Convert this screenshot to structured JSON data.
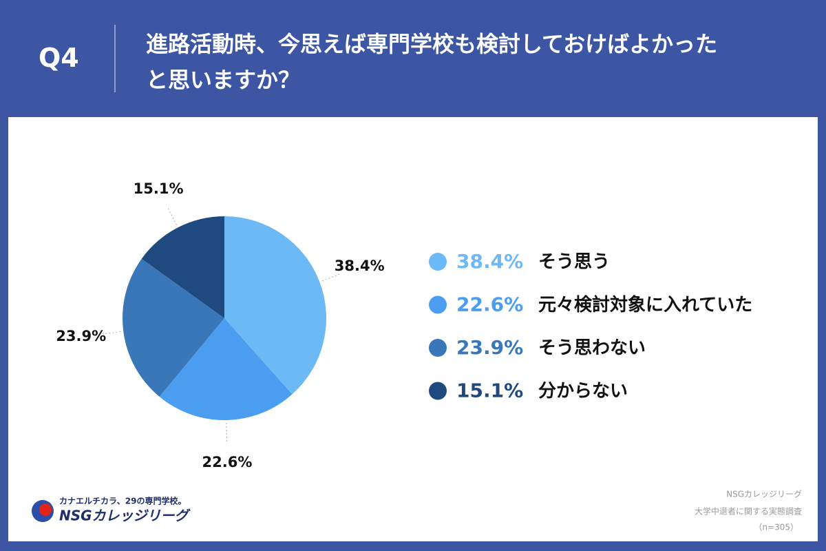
{
  "header": {
    "question": "Q4"
  },
  "chart_data": {
    "type": "pie",
    "title": "進路活動時、今思えば専門学校も検討しておけばよかったと思いますか？",
    "categories": [
      "そう思う",
      "元々検討対象に入れていた",
      "そう思わない",
      "分からない"
    ],
    "values": [
      38.4,
      22.6,
      23.9,
      15.1
    ],
    "value_labels": [
      "38.4%",
      "22.6%",
      "23.9%",
      "15.1%"
    ],
    "colors": [
      "#6db9f6",
      "#4b9df0",
      "#3a77b9",
      "#1e4a7f"
    ]
  },
  "footer": {
    "tagline": "カナエルチカラ、29の専門学校。",
    "brand": "NSGカレッジリーグ",
    "source": [
      "NSGカレッジリーグ",
      "大学中退者に関する実態調査",
      "（n=305）"
    ]
  }
}
